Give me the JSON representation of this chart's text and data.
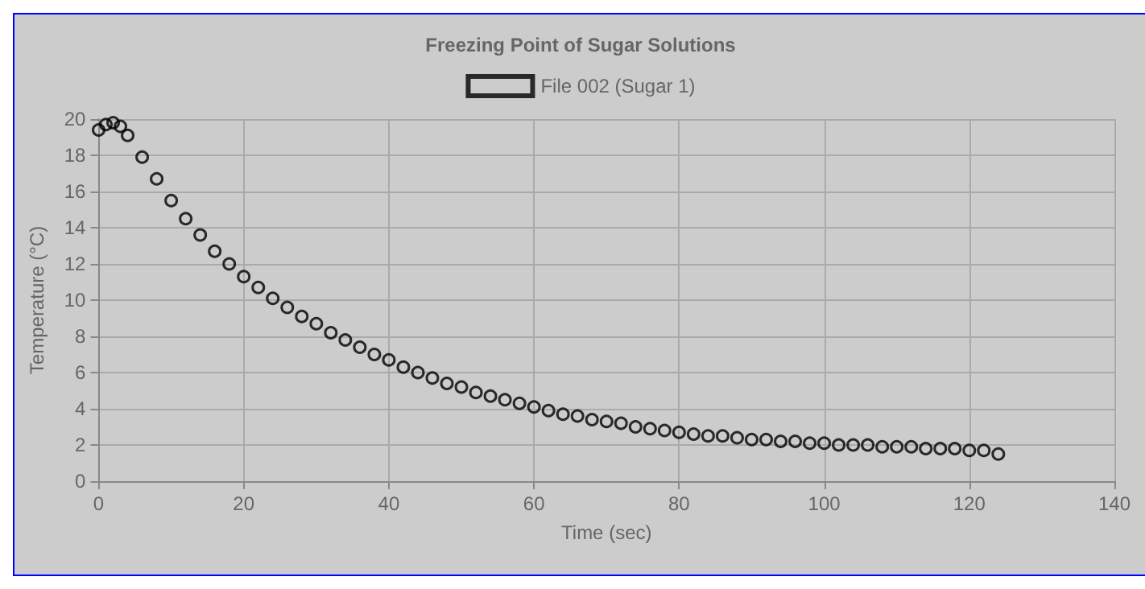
{
  "chart_data": {
    "type": "scatter",
    "title": "Freezing Point of Sugar Solutions",
    "xlabel": "Time (sec)",
    "ylabel": "Temperature (°C)",
    "series": [
      {
        "name": "File 002 (Sugar 1)",
        "color": "#000000",
        "x": [
          0,
          1,
          2,
          3,
          4,
          6,
          8,
          10,
          12,
          14,
          16,
          18,
          20,
          22,
          24,
          26,
          28,
          30,
          32,
          34,
          36,
          38,
          40,
          42,
          44,
          46,
          48,
          50,
          52,
          54,
          56,
          58,
          60,
          62,
          64,
          66,
          68,
          70,
          72,
          74,
          76,
          78,
          80,
          82,
          84,
          86,
          88,
          90,
          92,
          94,
          96,
          98,
          100,
          102,
          104,
          106,
          108,
          110,
          112,
          114,
          116,
          118,
          120,
          122,
          124
        ],
        "values": [
          19.4,
          19.7,
          19.8,
          19.6,
          19.1,
          17.9,
          16.7,
          15.5,
          14.5,
          13.6,
          12.7,
          12.0,
          11.3,
          10.7,
          10.1,
          9.6,
          9.1,
          8.7,
          8.2,
          7.8,
          7.4,
          7.0,
          6.7,
          6.3,
          6.0,
          5.7,
          5.4,
          5.2,
          4.9,
          4.7,
          4.5,
          4.3,
          4.1,
          3.9,
          3.7,
          3.6,
          3.4,
          3.3,
          3.2,
          3.0,
          2.9,
          2.8,
          2.7,
          2.6,
          2.5,
          2.5,
          2.4,
          2.3,
          2.3,
          2.2,
          2.2,
          2.1,
          2.1,
          2.0,
          2.0,
          2.0,
          1.9,
          1.9,
          1.9,
          1.8,
          1.8,
          1.8,
          1.7,
          1.7,
          1.5
        ]
      }
    ],
    "xlim": [
      0,
      140
    ],
    "xticks": [
      0,
      20,
      40,
      60,
      80,
      100,
      120,
      140
    ],
    "ylim": [
      0,
      20
    ],
    "yticks": [
      0,
      2,
      4,
      6,
      8,
      10,
      12,
      14,
      16,
      18,
      20
    ],
    "grid": true,
    "legend": "top",
    "marker": "circle"
  }
}
